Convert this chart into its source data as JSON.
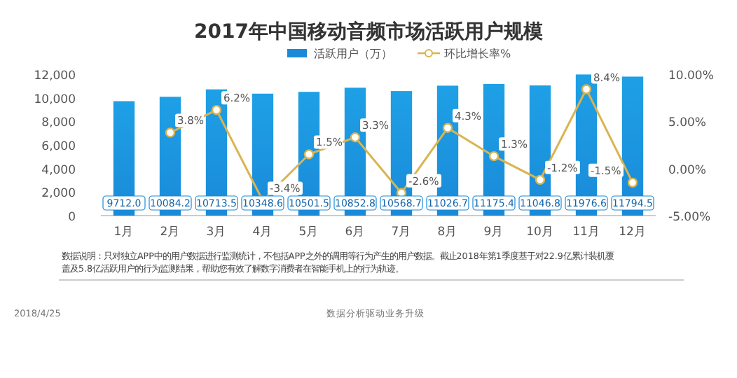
{
  "chart_data": {
    "type": "bar",
    "title": "2017年中国移动音频市场活跃用户规模",
    "categories": [
      "1月",
      "2月",
      "3月",
      "4月",
      "5月",
      "6月",
      "7月",
      "8月",
      "9月",
      "10月",
      "11月",
      "12月"
    ],
    "series": [
      {
        "name": "活跃用户（万）",
        "color": "#1a8ad8",
        "values": [
          9712,
          10084.2,
          10713.5,
          10348.6,
          10501.5,
          10852.8,
          10568.7,
          11026.7,
          11175.4,
          11046.8,
          11976.6,
          11794.5
        ],
        "value_labels": [
          "9712.0",
          "10084.2",
          "10713.5",
          "10348.6",
          "10501.5",
          "10852.8",
          "10568.7",
          "11026.7",
          "11175.4",
          "11046.8",
          "11976.6",
          "11794.5"
        ]
      },
      {
        "name": "环比增长率%",
        "type": "line",
        "axis": "y2",
        "color": "#d9b450",
        "marker": "circle",
        "values": [
          null,
          3.8,
          6.2,
          -3.4,
          1.5,
          3.3,
          -2.6,
          4.3,
          1.3,
          -1.2,
          8.4,
          -1.5
        ],
        "value_labels": [
          null,
          "3.8%",
          "6.2%",
          "-3.4%",
          "1.5%",
          "3.3%",
          "-2.6%",
          "4.3%",
          "1.3%",
          "-1.2%",
          "8.4%",
          "-1.5%"
        ]
      }
    ],
    "ylim": [
      0,
      12000
    ],
    "yticks": [
      0,
      {
        "value": 2000,
        "label": "2,000"
      },
      {
        "value": 4000,
        "label": "4,000"
      },
      {
        "value": 6000,
        "label": "6,000"
      },
      {
        "value": 8000,
        "label": "8,000"
      },
      {
        "value": 10000,
        "label": "10,000"
      },
      {
        "value": 12000,
        "label": "12,000"
      }
    ],
    "y2lim": [
      -5,
      10
    ],
    "y2ticks": [
      {
        "value": -5,
        "label": "-5.00%"
      },
      {
        "value": 0,
        "label": "0.00%"
      },
      {
        "value": 5,
        "label": "5.00%"
      },
      {
        "value": 10,
        "label": "10.00%"
      }
    ],
    "legend": "top",
    "grid": false,
    "annotations": [
      "数据说明：只对独立APP中的用户数据进行监测统计，不包括APP之外的调用等行为产生的用户数据。截止2018年第1季度基于对22.9亿累计装机覆盖及5.8亿活跃用户的行为监测结果，帮助您有效了解数字消费者在智能手机上的行为轨迹。",
      "2018/4/25",
      "数据分析驱动业务升级"
    ]
  }
}
